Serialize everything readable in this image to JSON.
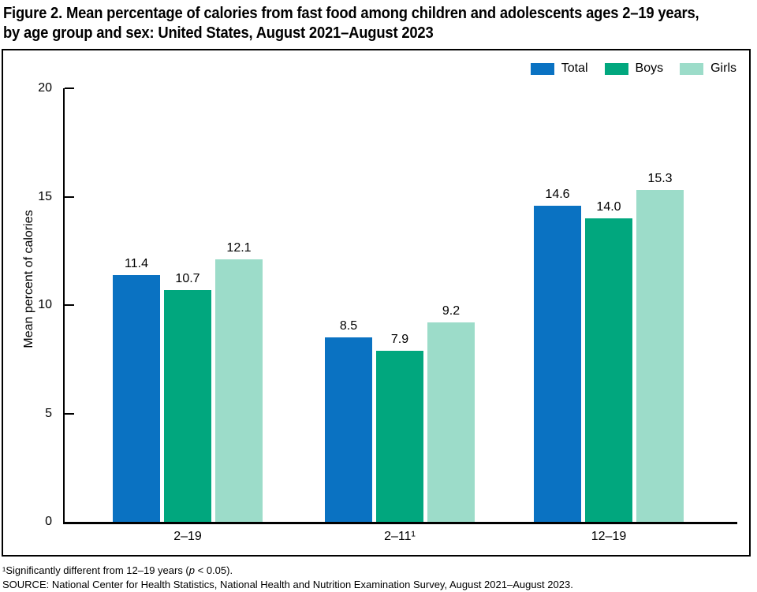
{
  "title": {
    "line1": "Figure 2. Mean percentage of calories from fast food among children and adolescents ages 2–19 years,",
    "line2": "by age group and sex: United States, August 2021–August 2023"
  },
  "footnotes": {
    "f1_pre": "¹Significantly different from 12–19 years (",
    "f1_italic": "p",
    "f1_post": " < 0.05).",
    "source": "SOURCE: National Center for Health Statistics, National Health and Nutrition Examination Survey, August 2021–August 2023."
  },
  "chart_data": {
    "type": "bar",
    "title": "Figure 2. Mean percentage of calories from fast food among children and adolescents ages 2–19 years, by age group and sex: United States, August 2021–August 2023",
    "categories": [
      "2–19",
      "2–11¹",
      "12–19"
    ],
    "series": [
      {
        "name": "Total",
        "color": "#0A72C2",
        "values": [
          11.4,
          8.5,
          14.6
        ]
      },
      {
        "name": "Boys",
        "color": "#01A77E",
        "values": [
          10.7,
          7.9,
          14.0
        ]
      },
      {
        "name": "Girls",
        "color": "#9CDCC9",
        "values": [
          12.1,
          9.2,
          15.3
        ]
      }
    ],
    "xlabel": "",
    "ylabel": "Mean percent of calories",
    "ylim": [
      0,
      20
    ],
    "yticks": [
      0,
      5,
      10,
      15,
      20
    ],
    "grid": false,
    "legend_position": "top-right",
    "value_labels": true,
    "value_label_decimals": 1
  }
}
